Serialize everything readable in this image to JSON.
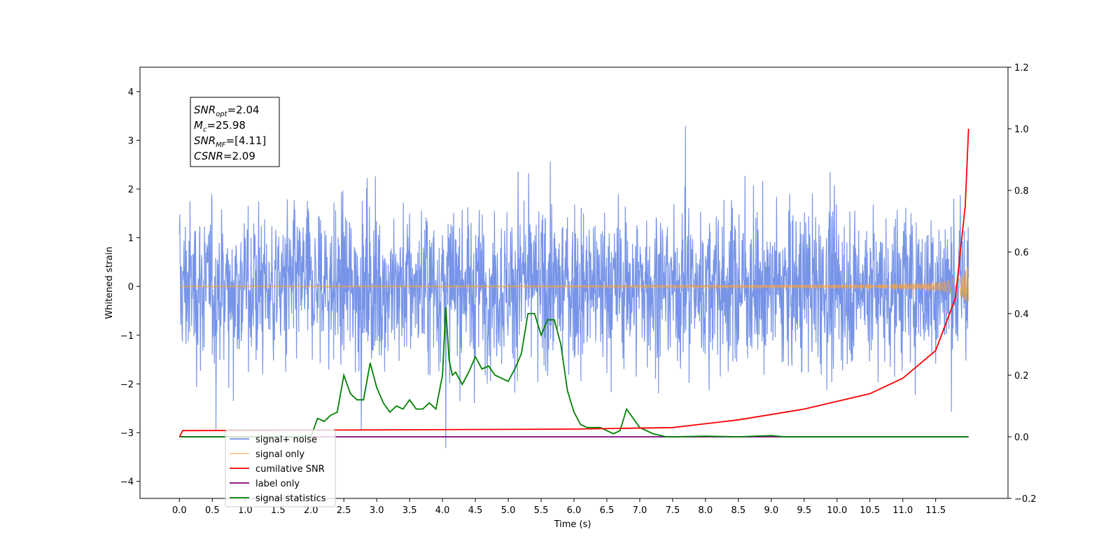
{
  "chart_data": {
    "type": "line",
    "xlabel": "Time (s)",
    "ylabel": "Whitened strain",
    "xlim": [
      -0.6,
      12.6
    ],
    "ylim_left": [
      -4.35,
      4.5
    ],
    "ylim_right": [
      -0.2,
      1.2
    ],
    "x_ticks": [
      "0.0",
      "0.5",
      "1.0",
      "1.5",
      "2.0",
      "2.5",
      "3.0",
      "3.5",
      "4.0",
      "4.5",
      "5.0",
      "5.5",
      "6.0",
      "6.5",
      "7.0",
      "7.5",
      "8.0",
      "8.5",
      "9.0",
      "9.5",
      "10.0",
      "10.5",
      "11.0",
      "11.5"
    ],
    "y_ticks_left": [
      "−4",
      "−3",
      "−2",
      "−1",
      "0",
      "1",
      "2",
      "3",
      "4"
    ],
    "y_ticks_right": [
      "−0.2",
      "0.0",
      "0.2",
      "0.4",
      "0.6",
      "0.8",
      "1.0",
      "1.2"
    ],
    "annotation": [
      {
        "base": "SNR",
        "sub": "opt",
        "value": "=2.04"
      },
      {
        "base": "M",
        "sub": "c",
        "value": "=25.98"
      },
      {
        "base": "SNR",
        "sub": "MF",
        "value": "=[4.11]"
      },
      {
        "base": "CSNR",
        "sub": "",
        "value": "=2.09"
      }
    ],
    "legend_position": "lower-left",
    "series": [
      {
        "name": "signal+ noise",
        "color": "#6b8be6",
        "axis": "left",
        "x_range": [
          0,
          12.0
        ],
        "amplitude_std": 0.85
      },
      {
        "name": "signal only",
        "color": "#f5a142",
        "axis": "left",
        "x_range": [
          0,
          12.0
        ],
        "peak_amplitude": 0.4
      },
      {
        "name": "cumilative SNR",
        "color": "#ff0000",
        "axis": "right",
        "x": [
          0.0,
          0.05,
          6.0,
          7.5,
          8.5,
          9.5,
          10.5,
          11.0,
          11.5,
          11.8,
          11.95,
          12.0
        ],
        "values": [
          0.0,
          0.02,
          0.025,
          0.03,
          0.055,
          0.09,
          0.14,
          0.19,
          0.28,
          0.45,
          0.75,
          1.0
        ]
      },
      {
        "name": "label only",
        "color": "#800080",
        "axis": "right",
        "x": [
          0.0,
          12.0
        ],
        "values": [
          0.0,
          0.0
        ]
      },
      {
        "name": "signal statistics",
        "color": "#008000",
        "axis": "right",
        "x": [
          0.0,
          2.0,
          2.1,
          2.2,
          2.3,
          2.4,
          2.5,
          2.6,
          2.7,
          2.8,
          2.9,
          3.0,
          3.1,
          3.2,
          3.3,
          3.4,
          3.5,
          3.6,
          3.7,
          3.8,
          3.9,
          4.0,
          4.05,
          4.1,
          4.15,
          4.2,
          4.3,
          4.4,
          4.5,
          4.6,
          4.7,
          4.8,
          4.9,
          5.0,
          5.1,
          5.2,
          5.3,
          5.4,
          5.5,
          5.6,
          5.7,
          5.8,
          5.9,
          6.0,
          6.1,
          6.2,
          6.3,
          6.4,
          6.5,
          6.6,
          6.7,
          6.8,
          6.9,
          7.0,
          7.1,
          7.2,
          7.3,
          7.4,
          7.5,
          8.0,
          8.5,
          9.0,
          9.2,
          12.0
        ],
        "values": [
          0.0,
          0.0,
          0.06,
          0.05,
          0.07,
          0.08,
          0.2,
          0.14,
          0.12,
          0.12,
          0.24,
          0.16,
          0.11,
          0.08,
          0.1,
          0.09,
          0.12,
          0.09,
          0.09,
          0.11,
          0.09,
          0.2,
          0.42,
          0.25,
          0.2,
          0.21,
          0.17,
          0.21,
          0.26,
          0.22,
          0.23,
          0.2,
          0.19,
          0.18,
          0.22,
          0.27,
          0.4,
          0.4,
          0.33,
          0.38,
          0.38,
          0.3,
          0.15,
          0.08,
          0.04,
          0.03,
          0.03,
          0.03,
          0.02,
          0.01,
          0.02,
          0.09,
          0.06,
          0.03,
          0.02,
          0.01,
          0.005,
          0.0,
          0.0,
          0.002,
          0.0,
          0.004,
          0.0,
          0.0
        ]
      }
    ]
  }
}
